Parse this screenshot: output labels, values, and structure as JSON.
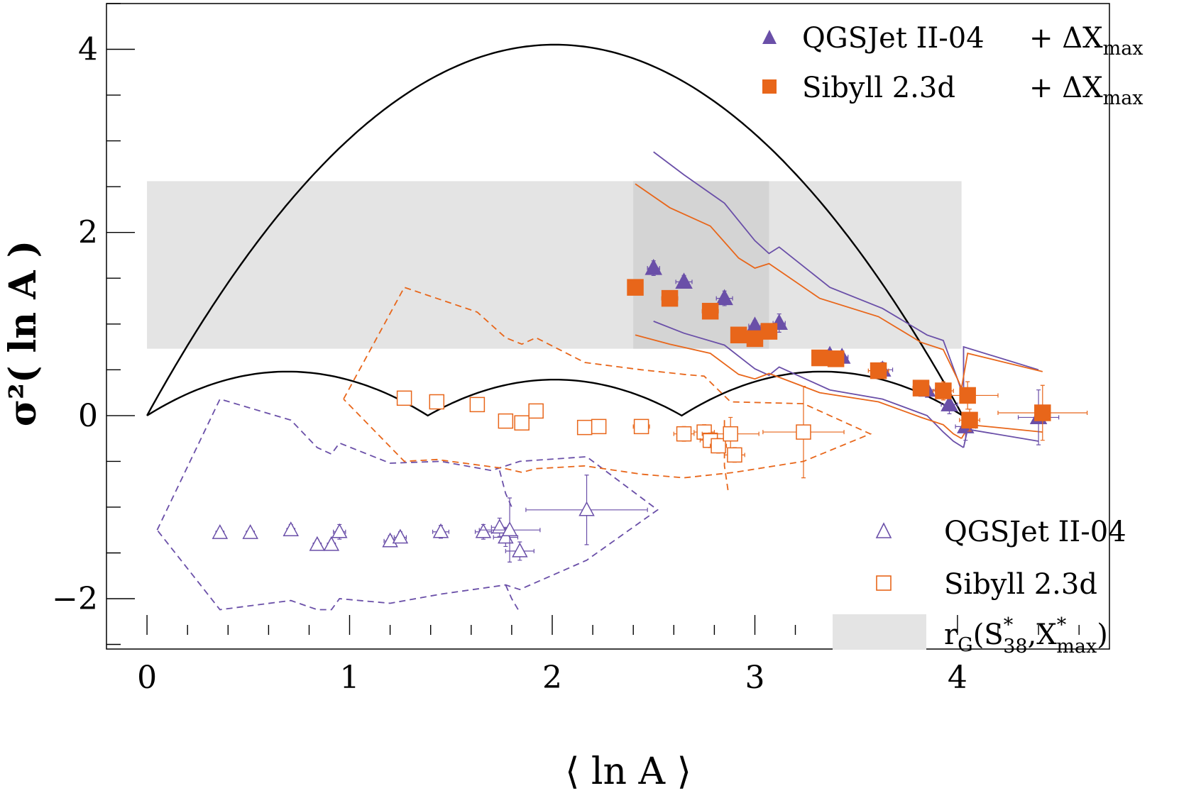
{
  "chart_data": {
    "type": "scatter",
    "xlabel": "⟨ ln A ⟩",
    "ylabel": "σ²( ln A )",
    "xlim": [
      -0.2,
      4.75
    ],
    "ylim": [
      -2.55,
      4.5
    ],
    "x_ticks": [
      0,
      1,
      2,
      3,
      4
    ],
    "y_ticks": [
      -2,
      0,
      2,
      4
    ],
    "x_tick_labels": [
      "0",
      "1",
      "2",
      "3",
      "4"
    ],
    "y_tick_labels": [
      "−2",
      "0",
      "2",
      "4"
    ],
    "grid": false,
    "legend_placement": "top-right and bottom-right",
    "legend": {
      "qgs_dx": {
        "name": "QGSJet II-04",
        "suffix": "+ ΔX",
        "sub": "max"
      },
      "sib_dx": {
        "name": "Sibyll 2.3d",
        "suffix": "+ ΔX",
        "sub": "max"
      },
      "qgs": {
        "name": "QGSJet II-04"
      },
      "sib": {
        "name": "Sibyll 2.3d"
      },
      "band": {
        "r": "r",
        "g": "G",
        "open": "(S",
        "s_sub": "38",
        "s_sup": "*",
        "comma": ",X",
        "x_sub": "max",
        "x_sup": "*",
        "close": ")"
      }
    },
    "colors": {
      "purple": "#6a4fa8",
      "orange": "#e8661a",
      "band": "#e4e4e4",
      "band_overlap": "#d4d4d4",
      "envelope": "#000000"
    },
    "band": {
      "y_range": [
        0.73,
        2.56
      ],
      "x_range": [
        0.0,
        4.02
      ],
      "overlap_x_range": [
        2.4,
        3.07
      ]
    },
    "envelope": {
      "upper": "sigma^2 = <lnA>(ln56 - <lnA>)",
      "lower_nodes": [
        [
          0,
          0
        ],
        [
          1.386,
          0
        ],
        [
          2.639,
          0
        ],
        [
          4.025,
          0
        ]
      ]
    },
    "series": [
      {
        "key": "qgs_dx",
        "marker": "filled-triangle",
        "color": "#6a4fa8",
        "points": [
          {
            "x": 2.5,
            "y": 1.61,
            "xerr": 0.03,
            "yerr": 0.08
          },
          {
            "x": 2.65,
            "y": 1.46,
            "xerr": 0.04,
            "yerr": 0.07
          },
          {
            "x": 2.85,
            "y": 1.28,
            "xerr": 0.04,
            "yerr": 0.08
          },
          {
            "x": 3.0,
            "y": 0.98,
            "xerr": 0.03,
            "yerr": 0.06
          },
          {
            "x": 3.12,
            "y": 1.01,
            "xerr": 0.03,
            "yerr": 0.1
          },
          {
            "x": 3.37,
            "y": 0.66,
            "xerr": 0.03,
            "yerr": 0.06
          },
          {
            "x": 3.43,
            "y": 0.64,
            "xerr": 0.03,
            "yerr": 0.06
          },
          {
            "x": 3.63,
            "y": 0.5,
            "xerr": 0.05,
            "yerr": 0.08
          },
          {
            "x": 3.85,
            "y": 0.28,
            "xerr": 0.04,
            "yerr": 0.08
          },
          {
            "x": 3.96,
            "y": 0.12,
            "xerr": 0.04,
            "yerr": 0.1
          },
          {
            "x": 4.04,
            "y": -0.12,
            "xerr": 0.05,
            "yerr": 0.15
          },
          {
            "x": 4.4,
            "y": -0.02,
            "xerr": 0.1,
            "yerr": 0.3
          }
        ]
      },
      {
        "key": "sib_dx",
        "marker": "filled-square",
        "color": "#e8661a",
        "points": [
          {
            "x": 2.41,
            "y": 1.4,
            "xerr": 0.03,
            "yerr": 0.06
          },
          {
            "x": 2.58,
            "y": 1.28,
            "xerr": 0.04,
            "yerr": 0.06
          },
          {
            "x": 2.78,
            "y": 1.14,
            "xerr": 0.04,
            "yerr": 0.07
          },
          {
            "x": 2.92,
            "y": 0.88,
            "xerr": 0.03,
            "yerr": 0.06
          },
          {
            "x": 3.0,
            "y": 0.84,
            "xerr": 0.03,
            "yerr": 0.06
          },
          {
            "x": 3.07,
            "y": 0.92,
            "xerr": 0.03,
            "yerr": 0.06
          },
          {
            "x": 3.32,
            "y": 0.63,
            "xerr": 0.03,
            "yerr": 0.05
          },
          {
            "x": 3.4,
            "y": 0.62,
            "xerr": 0.03,
            "yerr": 0.05
          },
          {
            "x": 3.61,
            "y": 0.49,
            "xerr": 0.05,
            "yerr": 0.06
          },
          {
            "x": 3.82,
            "y": 0.3,
            "xerr": 0.04,
            "yerr": 0.08
          },
          {
            "x": 3.93,
            "y": 0.27,
            "xerr": 0.05,
            "yerr": 0.1
          },
          {
            "x": 4.05,
            "y": 0.22,
            "xerr": 0.15,
            "yerr": 0.15
          },
          {
            "x": 4.06,
            "y": -0.05,
            "xerr": 0.05,
            "yerr": 0.12
          },
          {
            "x": 4.42,
            "y": 0.03,
            "xerr": 0.22,
            "yerr": 0.3
          }
        ]
      },
      {
        "key": "qgs",
        "marker": "open-triangle",
        "color": "#6a4fa8",
        "points": [
          {
            "x": 0.36,
            "y": -1.28,
            "xerr": 0.02,
            "yerr": 0.05
          },
          {
            "x": 0.51,
            "y": -1.28,
            "xerr": 0.02,
            "yerr": 0.05
          },
          {
            "x": 0.71,
            "y": -1.25,
            "xerr": 0.02,
            "yerr": 0.06
          },
          {
            "x": 0.84,
            "y": -1.41,
            "xerr": 0.02,
            "yerr": 0.05
          },
          {
            "x": 0.91,
            "y": -1.41,
            "xerr": 0.02,
            "yerr": 0.05
          },
          {
            "x": 0.95,
            "y": -1.27,
            "xerr": 0.03,
            "yerr": 0.08
          },
          {
            "x": 1.2,
            "y": -1.37,
            "xerr": 0.03,
            "yerr": 0.06
          },
          {
            "x": 1.25,
            "y": -1.33,
            "xerr": 0.03,
            "yerr": 0.06
          },
          {
            "x": 1.45,
            "y": -1.27,
            "xerr": 0.04,
            "yerr": 0.07
          },
          {
            "x": 1.66,
            "y": -1.27,
            "xerr": 0.04,
            "yerr": 0.08
          },
          {
            "x": 1.74,
            "y": -1.22,
            "xerr": 0.04,
            "yerr": 0.1
          },
          {
            "x": 1.77,
            "y": -1.33,
            "xerr": 0.06,
            "yerr": 0.1
          },
          {
            "x": 1.79,
            "y": -1.25,
            "xerr": 0.15,
            "yerr": 0.35
          },
          {
            "x": 1.84,
            "y": -1.48,
            "xerr": 0.07,
            "yerr": 0.1
          },
          {
            "x": 2.17,
            "y": -1.03,
            "xerr": 0.3,
            "yerr": 0.38
          }
        ]
      },
      {
        "key": "sib",
        "marker": "open-square",
        "color": "#e8661a",
        "points": [
          {
            "x": 1.27,
            "y": 0.19,
            "xerr": 0.02,
            "yerr": 0.04
          },
          {
            "x": 1.43,
            "y": 0.15,
            "xerr": 0.02,
            "yerr": 0.04
          },
          {
            "x": 1.63,
            "y": 0.12,
            "xerr": 0.02,
            "yerr": 0.05
          },
          {
            "x": 1.77,
            "y": -0.06,
            "xerr": 0.03,
            "yerr": 0.05
          },
          {
            "x": 1.85,
            "y": -0.08,
            "xerr": 0.03,
            "yerr": 0.05
          },
          {
            "x": 1.92,
            "y": 0.05,
            "xerr": 0.03,
            "yerr": 0.07
          },
          {
            "x": 2.16,
            "y": -0.13,
            "xerr": 0.03,
            "yerr": 0.05
          },
          {
            "x": 2.23,
            "y": -0.12,
            "xerr": 0.03,
            "yerr": 0.05
          },
          {
            "x": 2.44,
            "y": -0.12,
            "xerr": 0.04,
            "yerr": 0.07
          },
          {
            "x": 2.65,
            "y": -0.2,
            "xerr": 0.05,
            "yerr": 0.08
          },
          {
            "x": 2.75,
            "y": -0.18,
            "xerr": 0.05,
            "yerr": 0.08
          },
          {
            "x": 2.78,
            "y": -0.27,
            "xerr": 0.05,
            "yerr": 0.08
          },
          {
            "x": 2.82,
            "y": -0.33,
            "xerr": 0.04,
            "yerr": 0.08
          },
          {
            "x": 2.88,
            "y": -0.2,
            "xerr": 0.14,
            "yerr": 0.18
          },
          {
            "x": 2.9,
            "y": -0.43,
            "xerr": 0.05,
            "yerr": 0.08
          },
          {
            "x": 3.24,
            "y": -0.18,
            "xerr": 0.2,
            "yerr": 0.5
          }
        ]
      }
    ],
    "contours": [
      {
        "key": "qgs_dx",
        "style": "solid",
        "color": "#6a4fa8",
        "closed": false,
        "lines": [
          [
            [
              2.5,
              2.88
            ],
            [
              2.65,
              2.63
            ],
            [
              2.85,
              2.32
            ],
            [
              3.0,
              1.91
            ],
            [
              3.07,
              1.77
            ],
            [
              3.12,
              1.84
            ],
            [
              3.37,
              1.4
            ],
            [
              3.63,
              1.17
            ],
            [
              3.85,
              0.88
            ],
            [
              3.93,
              0.82
            ],
            [
              4.0,
              0.4
            ],
            [
              4.03,
              0.2
            ]
          ],
          [
            [
              2.5,
              1.03
            ],
            [
              2.65,
              0.9
            ],
            [
              2.85,
              0.77
            ],
            [
              3.0,
              0.51
            ],
            [
              3.07,
              0.44
            ],
            [
              3.12,
              0.53
            ],
            [
              3.37,
              0.28
            ],
            [
              3.63,
              0.18
            ],
            [
              3.85,
              0.0
            ],
            [
              3.93,
              -0.18
            ],
            [
              3.98,
              -0.28
            ],
            [
              4.03,
              -0.35
            ]
          ],
          [
            [
              4.03,
              0.2
            ],
            [
              4.03,
              0.75
            ],
            [
              4.4,
              0.5
            ]
          ],
          [
            [
              4.03,
              -0.35
            ],
            [
              4.05,
              -0.15
            ],
            [
              4.4,
              -0.28
            ]
          ]
        ]
      },
      {
        "key": "sib_dx",
        "style": "solid",
        "color": "#e8661a",
        "closed": false,
        "lines": [
          [
            [
              2.41,
              2.53
            ],
            [
              2.58,
              2.27
            ],
            [
              2.78,
              2.07
            ],
            [
              2.92,
              1.72
            ],
            [
              3.0,
              1.61
            ],
            [
              3.07,
              1.66
            ],
            [
              3.32,
              1.28
            ],
            [
              3.61,
              1.08
            ],
            [
              3.82,
              0.8
            ],
            [
              3.93,
              0.72
            ],
            [
              4.0,
              0.4
            ],
            [
              4.02,
              0.3
            ]
          ],
          [
            [
              2.41,
              0.88
            ],
            [
              2.58,
              0.78
            ],
            [
              2.78,
              0.68
            ],
            [
              2.92,
              0.45
            ],
            [
              3.0,
              0.4
            ],
            [
              3.07,
              0.46
            ],
            [
              3.32,
              0.25
            ],
            [
              3.61,
              0.15
            ],
            [
              3.82,
              -0.02
            ],
            [
              3.93,
              -0.1
            ],
            [
              3.98,
              -0.2
            ],
            [
              4.02,
              -0.25
            ]
          ],
          [
            [
              4.02,
              0.3
            ],
            [
              4.05,
              0.68
            ],
            [
              4.42,
              0.48
            ]
          ],
          [
            [
              4.02,
              -0.25
            ],
            [
              4.06,
              -0.1
            ],
            [
              4.42,
              -0.18
            ]
          ]
        ]
      },
      {
        "key": "qgs",
        "style": "dashed",
        "color": "#6a4fa8",
        "closed": false,
        "lines": [
          [
            [
              0.05,
              -1.25
            ],
            [
              0.36,
              0.18
            ],
            [
              0.71,
              -0.05
            ],
            [
              0.84,
              -0.35
            ],
            [
              0.91,
              -0.42
            ],
            [
              0.95,
              -0.3
            ],
            [
              1.2,
              -0.52
            ],
            [
              1.45,
              -0.5
            ],
            [
              1.7,
              -0.6
            ],
            [
              1.84,
              -0.5
            ],
            [
              2.17,
              -0.45
            ],
            [
              2.52,
              -1.03
            ],
            [
              2.17,
              -1.58
            ],
            [
              1.84,
              -1.9
            ],
            [
              1.77,
              -1.85
            ],
            [
              1.45,
              -1.95
            ],
            [
              1.2,
              -2.05
            ],
            [
              0.95,
              -2.0
            ],
            [
              0.91,
              -2.12
            ],
            [
              0.84,
              -2.12
            ],
            [
              0.71,
              -2.02
            ],
            [
              0.36,
              -2.12
            ],
            [
              0.05,
              -1.25
            ]
          ],
          [
            [
              1.74,
              -0.6
            ],
            [
              1.77,
              -0.85
            ],
            [
              1.8,
              -1.0
            ]
          ],
          [
            [
              1.77,
              -1.85
            ],
            [
              1.8,
              -2.0
            ],
            [
              1.84,
              -2.15
            ]
          ]
        ]
      },
      {
        "key": "sib",
        "style": "dashed",
        "color": "#e8661a",
        "closed": false,
        "lines": [
          [
            [
              0.97,
              0.18
            ],
            [
              1.27,
              1.4
            ],
            [
              1.63,
              1.13
            ],
            [
              1.77,
              0.85
            ],
            [
              1.85,
              0.78
            ],
            [
              1.92,
              0.85
            ],
            [
              2.16,
              0.58
            ],
            [
              2.44,
              0.5
            ],
            [
              2.65,
              0.45
            ],
            [
              2.75,
              0.43
            ],
            [
              2.88,
              0.15
            ],
            [
              3.24,
              0.13
            ],
            [
              3.57,
              -0.2
            ],
            [
              3.24,
              -0.5
            ],
            [
              2.9,
              -0.62
            ],
            [
              2.65,
              -0.68
            ],
            [
              2.44,
              -0.64
            ],
            [
              2.16,
              -0.55
            ],
            [
              1.92,
              -0.58
            ],
            [
              1.85,
              -0.62
            ],
            [
              1.77,
              -0.58
            ],
            [
              1.43,
              -0.48
            ],
            [
              1.27,
              -0.5
            ],
            [
              0.97,
              0.18
            ]
          ],
          [
            [
              2.85,
              -0.05
            ],
            [
              2.85,
              -0.55
            ],
            [
              2.87,
              -0.85
            ]
          ]
        ]
      }
    ]
  }
}
